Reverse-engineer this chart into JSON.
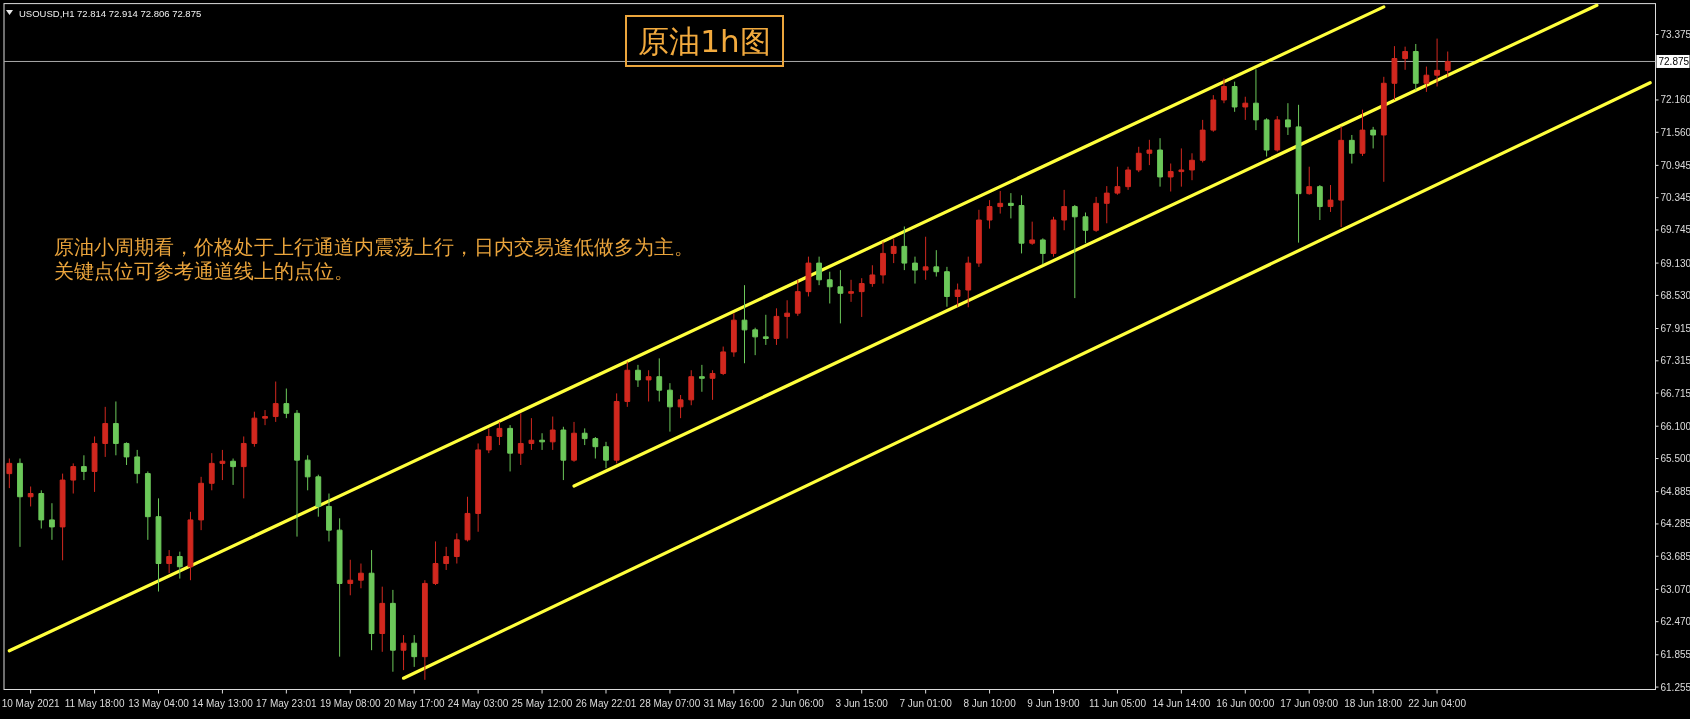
{
  "chart_data": {
    "type": "candlestick",
    "title": "原油1h图",
    "subtitle": "USOUSD,H1  72.814 72.914 72.806 72.875",
    "annotations": [
      "原油小周期看，价格处于上行通道内震荡上行，日内交易逢低做多为主。",
      "关键点位可参考通道线上的点位。"
    ],
    "categories": [
      null,
      null,
      "10 May 2021",
      null,
      null,
      null,
      null,
      null,
      "11 May 18:00",
      null,
      null,
      null,
      null,
      null,
      "13 May 04:00",
      null,
      null,
      null,
      null,
      null,
      "14 May 13:00",
      null,
      null,
      null,
      null,
      null,
      "17 May 23:01",
      null,
      null,
      null,
      null,
      null,
      "19 May 08:00",
      null,
      null,
      null,
      null,
      null,
      "20 May 17:00",
      null,
      null,
      null,
      null,
      null,
      "24 May 03:00",
      null,
      null,
      null,
      null,
      null,
      "25 May 12:00",
      null,
      null,
      null,
      null,
      null,
      "26 May 22:01",
      null,
      null,
      null,
      null,
      null,
      "28 May 07:00",
      null,
      null,
      null,
      null,
      null,
      "31 May 16:00",
      null,
      null,
      null,
      null,
      null,
      "2 Jun 06:00",
      null,
      null,
      null,
      null,
      null,
      "3 Jun 15:00",
      null,
      null,
      null,
      null,
      null,
      "7 Jun 01:00",
      null,
      null,
      null,
      null,
      null,
      "8 Jun 10:00",
      null,
      null,
      null,
      null,
      null,
      "9 Jun 19:00",
      null,
      null,
      null,
      null,
      null,
      "11 Jun 05:00",
      null,
      null,
      null,
      null,
      null,
      "14 Jun 14:00",
      null,
      null,
      null,
      null,
      null,
      "16 Jun 00:00",
      null,
      null,
      null,
      null,
      null,
      "17 Jun 09:00",
      null,
      null,
      null,
      null,
      null,
      "18 Jun 18:00",
      null,
      null,
      null,
      null,
      null,
      "22 Jun 04:00",
      null,
      null,
      null,
      null,
      null,
      null,
      null,
      null,
      null,
      null,
      null,
      null,
      null,
      null,
      null,
      null,
      null,
      null,
      null,
      null
    ],
    "ohlc": [
      [
        65.22,
        65.5,
        64.95,
        65.41
      ],
      [
        65.41,
        65.5,
        63.86,
        64.79
      ],
      [
        64.79,
        64.98,
        64.61,
        64.85
      ],
      [
        64.85,
        64.91,
        64.2,
        64.36
      ],
      [
        64.36,
        64.67,
        63.99,
        64.23
      ],
      [
        64.23,
        65.22,
        63.61,
        65.1
      ],
      [
        65.1,
        65.41,
        64.85,
        65.35
      ],
      [
        65.35,
        65.56,
        65.1,
        65.26
      ],
      [
        65.26,
        65.91,
        64.88,
        65.78
      ],
      [
        65.78,
        66.46,
        65.53,
        66.15
      ],
      [
        66.15,
        66.56,
        65.56,
        65.78
      ],
      [
        65.78,
        65.8,
        65.38,
        65.53
      ],
      [
        65.53,
        65.66,
        65.04,
        65.22
      ],
      [
        65.22,
        65.26,
        63.99,
        64.42
      ],
      [
        64.42,
        64.76,
        63.03,
        63.55
      ],
      [
        63.55,
        63.8,
        63.37,
        63.68
      ],
      [
        63.68,
        63.77,
        63.27,
        63.49
      ],
      [
        63.49,
        64.51,
        63.24,
        64.36
      ],
      [
        64.36,
        65.16,
        64.17,
        65.04
      ],
      [
        65.04,
        65.6,
        64.91,
        65.41
      ],
      [
        65.41,
        65.66,
        65.1,
        65.45
      ],
      [
        65.45,
        65.5,
        65.01,
        65.35
      ],
      [
        65.35,
        65.91,
        64.76,
        65.78
      ],
      [
        65.78,
        66.37,
        65.72,
        66.25
      ],
      [
        66.25,
        66.4,
        66.12,
        66.28
      ],
      [
        66.28,
        66.93,
        66.18,
        66.52
      ],
      [
        66.52,
        66.8,
        66.25,
        66.34
      ],
      [
        66.34,
        66.4,
        64.05,
        65.47
      ],
      [
        65.47,
        65.56,
        64.91,
        65.16
      ],
      [
        65.16,
        65.2,
        64.42,
        64.61
      ],
      [
        64.61,
        64.85,
        63.96,
        64.17
      ],
      [
        64.17,
        64.39,
        61.82,
        63.18
      ],
      [
        63.18,
        63.62,
        62.96,
        63.24
      ],
      [
        63.24,
        63.55,
        63.09,
        63.37
      ],
      [
        63.37,
        63.8,
        61.94,
        62.25
      ],
      [
        62.25,
        63.12,
        61.91,
        62.81
      ],
      [
        62.81,
        63.06,
        61.54,
        61.94
      ],
      [
        61.94,
        62.22,
        61.57,
        62.07
      ],
      [
        62.07,
        62.22,
        61.63,
        61.82
      ],
      [
        61.82,
        63.24,
        61.39,
        63.18
      ],
      [
        63.18,
        63.96,
        63.15,
        63.55
      ],
      [
        63.55,
        63.86,
        63.43,
        63.68
      ],
      [
        63.68,
        64.11,
        63.55,
        63.99
      ],
      [
        63.99,
        64.79,
        63.96,
        64.48
      ],
      [
        64.48,
        65.78,
        64.14,
        65.66
      ],
      [
        65.66,
        66.06,
        65.6,
        65.91
      ],
      [
        65.91,
        66.18,
        65.75,
        66.06
      ],
      [
        66.06,
        66.12,
        65.26,
        65.6
      ],
      [
        65.6,
        66.34,
        65.38,
        65.78
      ],
      [
        65.78,
        66.25,
        65.66,
        65.84
      ],
      [
        65.84,
        65.97,
        65.66,
        65.81
      ],
      [
        65.81,
        66.28,
        65.66,
        66.03
      ],
      [
        66.03,
        66.09,
        65.1,
        65.47
      ],
      [
        65.47,
        66.18,
        65.44,
        65.97
      ],
      [
        65.97,
        66.06,
        65.75,
        65.87
      ],
      [
        65.87,
        65.9,
        65.5,
        65.72
      ],
      [
        65.72,
        65.81,
        65.32,
        65.47
      ],
      [
        65.47,
        66.71,
        65.41,
        66.56
      ],
      [
        66.56,
        67.3,
        66.46,
        67.14
      ],
      [
        67.14,
        67.24,
        66.83,
        66.96
      ],
      [
        66.96,
        67.14,
        66.56,
        67.02
      ],
      [
        67.02,
        67.36,
        66.56,
        66.77
      ],
      [
        66.77,
        66.9,
        66.0,
        66.46
      ],
      [
        66.46,
        66.68,
        66.25,
        66.59
      ],
      [
        66.59,
        67.14,
        66.49,
        67.02
      ],
      [
        67.02,
        67.24,
        66.74,
        66.99
      ],
      [
        66.99,
        67.14,
        66.59,
        67.08
      ],
      [
        67.08,
        67.58,
        67.05,
        67.48
      ],
      [
        67.48,
        68.2,
        67.39,
        68.07
      ],
      [
        68.07,
        68.72,
        67.27,
        67.89
      ],
      [
        67.89,
        67.93,
        67.42,
        67.76
      ],
      [
        67.76,
        68.17,
        67.61,
        67.73
      ],
      [
        67.73,
        68.29,
        67.61,
        68.14
      ],
      [
        68.14,
        68.44,
        67.73,
        68.2
      ],
      [
        68.2,
        68.82,
        68.15,
        68.6
      ],
      [
        68.6,
        69.25,
        68.51,
        69.13
      ],
      [
        69.13,
        69.25,
        68.72,
        68.82
      ],
      [
        68.82,
        68.97,
        68.38,
        68.69
      ],
      [
        68.69,
        69.0,
        68.01,
        68.57
      ],
      [
        68.57,
        68.82,
        68.41,
        68.6
      ],
      [
        68.6,
        68.85,
        68.13,
        68.75
      ],
      [
        68.75,
        69.09,
        68.69,
        68.91
      ],
      [
        68.91,
        69.53,
        68.75,
        69.31
      ],
      [
        69.31,
        69.59,
        69.13,
        69.44
      ],
      [
        69.44,
        69.81,
        69.0,
        69.13
      ],
      [
        69.13,
        69.25,
        68.75,
        69.0
      ],
      [
        69.0,
        69.62,
        68.82,
        69.06
      ],
      [
        69.06,
        69.37,
        68.88,
        68.97
      ],
      [
        68.97,
        69.06,
        68.32,
        68.51
      ],
      [
        68.51,
        68.75,
        68.32,
        68.63
      ],
      [
        68.63,
        69.25,
        68.31,
        69.13
      ],
      [
        69.13,
        70.12,
        69.06,
        69.93
      ],
      [
        69.93,
        70.3,
        69.77,
        70.18
      ],
      [
        70.18,
        70.47,
        70.05,
        70.24
      ],
      [
        70.24,
        70.43,
        69.96,
        70.2
      ],
      [
        70.2,
        70.39,
        69.31,
        69.5
      ],
      [
        69.5,
        69.9,
        69.47,
        69.56
      ],
      [
        69.56,
        69.59,
        69.11,
        69.31
      ],
      [
        69.31,
        69.99,
        69.25,
        69.93
      ],
      [
        69.93,
        70.49,
        69.74,
        70.18
      ],
      [
        70.18,
        70.21,
        68.48,
        69.99
      ],
      [
        69.99,
        70.07,
        69.5,
        69.74
      ],
      [
        69.74,
        70.36,
        69.71,
        70.24
      ],
      [
        70.24,
        70.56,
        69.87,
        70.43
      ],
      [
        70.43,
        70.92,
        70.4,
        70.55
      ],
      [
        70.55,
        70.92,
        70.49,
        70.86
      ],
      [
        70.86,
        71.29,
        70.82,
        71.17
      ],
      [
        71.17,
        71.42,
        70.95,
        71.23
      ],
      [
        71.23,
        71.45,
        70.55,
        70.73
      ],
      [
        70.73,
        70.98,
        70.46,
        70.83
      ],
      [
        70.83,
        71.26,
        70.55,
        70.86
      ],
      [
        70.86,
        71.17,
        70.67,
        71.04
      ],
      [
        71.04,
        71.79,
        71.0,
        71.6
      ],
      [
        71.6,
        72.25,
        71.57,
        72.16
      ],
      [
        72.16,
        72.56,
        72.1,
        72.41
      ],
      [
        72.41,
        72.5,
        71.94,
        72.03
      ],
      [
        72.03,
        72.22,
        71.79,
        72.1
      ],
      [
        72.1,
        72.73,
        71.6,
        71.79
      ],
      [
        71.79,
        71.82,
        71.11,
        71.23
      ],
      [
        71.23,
        71.86,
        71.2,
        71.79
      ],
      [
        71.79,
        72.1,
        71.51,
        71.66
      ],
      [
        71.66,
        72.07,
        69.51,
        70.42
      ],
      [
        70.42,
        70.92,
        70.4,
        70.55
      ],
      [
        70.55,
        70.58,
        69.93,
        70.18
      ],
      [
        70.18,
        70.58,
        70.08,
        70.3
      ],
      [
        70.3,
        71.67,
        69.8,
        71.41
      ],
      [
        71.41,
        71.51,
        70.98,
        71.17
      ],
      [
        71.17,
        71.98,
        71.12,
        71.6
      ],
      [
        71.6,
        71.66,
        71.26,
        71.51
      ],
      [
        71.51,
        72.59,
        70.64,
        72.47
      ],
      [
        72.47,
        73.16,
        72.16,
        72.93
      ],
      [
        72.93,
        73.15,
        72.72,
        73.06
      ],
      [
        73.06,
        73.2,
        72.34,
        72.47
      ],
      [
        72.47,
        72.78,
        72.31,
        72.62
      ],
      [
        72.62,
        73.3,
        72.41,
        72.71
      ],
      [
        72.71,
        73.06,
        72.59,
        72.875
      ],
      null,
      null,
      null,
      null,
      null,
      null,
      null,
      null,
      null,
      null,
      null,
      null,
      null,
      null,
      null,
      null,
      null,
      null,
      null
    ],
    "colors": [
      "#d1281f",
      "#6cc85a",
      "#d1281f",
      "#6cc85a",
      "#6cc85a",
      "#d1281f",
      "#d1281f",
      "#6cc85a",
      "#d1281f",
      "#d1281f",
      "#6cc85a",
      "#6cc85a",
      "#6cc85a",
      "#6cc85a",
      "#6cc85a",
      "#d1281f",
      "#6cc85a",
      "#d1281f",
      "#d1281f",
      "#d1281f",
      "#d1281f",
      "#6cc85a",
      "#d1281f",
      "#d1281f",
      "#d1281f",
      "#d1281f",
      "#6cc85a",
      "#6cc85a",
      "#6cc85a",
      "#6cc85a",
      "#6cc85a",
      "#6cc85a",
      "#d1281f",
      "#d1281f",
      "#6cc85a",
      "#d1281f",
      "#6cc85a",
      "#d1281f",
      "#6cc85a",
      "#d1281f",
      "#d1281f",
      "#d1281f",
      "#d1281f",
      "#d1281f",
      "#d1281f",
      "#d1281f",
      "#d1281f",
      "#6cc85a",
      "#d1281f",
      "#d1281f",
      "#6cc85a",
      "#d1281f",
      "#6cc85a",
      "#d1281f",
      "#6cc85a",
      "#6cc85a",
      "#6cc85a",
      "#d1281f",
      "#d1281f",
      "#6cc85a",
      "#d1281f",
      "#6cc85a",
      "#6cc85a",
      "#d1281f",
      "#d1281f",
      "#6cc85a",
      "#d1281f",
      "#d1281f",
      "#d1281f",
      "#6cc85a",
      "#6cc85a",
      "#6cc85a",
      "#d1281f",
      "#d1281f",
      "#d1281f",
      "#d1281f",
      "#6cc85a",
      "#6cc85a",
      "#6cc85a",
      "#d1281f",
      "#d1281f",
      "#d1281f",
      "#d1281f",
      "#d1281f",
      "#6cc85a",
      "#6cc85a",
      "#d1281f",
      "#6cc85a",
      "#6cc85a",
      "#d1281f",
      "#d1281f",
      "#d1281f",
      "#d1281f",
      "#d1281f",
      "#6cc85a",
      "#6cc85a",
      "#d1281f",
      "#6cc85a",
      "#d1281f",
      "#d1281f",
      "#6cc85a",
      "#6cc85a",
      "#d1281f",
      "#d1281f",
      "#d1281f",
      "#d1281f",
      "#d1281f",
      "#d1281f",
      "#6cc85a",
      "#d1281f",
      "#d1281f",
      "#d1281f",
      "#d1281f",
      "#d1281f",
      "#d1281f",
      "#6cc85a",
      "#d1281f",
      "#6cc85a",
      "#6cc85a",
      "#d1281f",
      "#6cc85a",
      "#6cc85a",
      "#d1281f",
      "#6cc85a",
      "#d1281f",
      "#d1281f",
      "#6cc85a",
      "#d1281f",
      "#6cc85a",
      "#d1281f",
      "#d1281f",
      "#d1281f",
      "#6cc85a",
      "#d1281f",
      "#d1281f",
      "#d1281f",
      null,
      null,
      null,
      null,
      null,
      null,
      null,
      null,
      null,
      null,
      null,
      null,
      null,
      null,
      null,
      null,
      null,
      null,
      null
    ],
    "series": [
      {
        "type": "line",
        "color": "#ffff3c",
        "values": [
          61.93,
          null,
          null,
          null,
          null,
          null,
          null,
          null,
          null,
          null,
          null,
          null,
          null,
          null,
          null,
          null,
          null,
          null,
          null,
          null,
          null,
          null,
          null,
          null,
          null,
          null,
          null,
          null,
          null,
          null,
          null,
          null,
          null,
          null,
          null,
          null,
          null,
          null,
          null,
          null,
          null,
          null,
          null,
          null,
          null,
          null,
          null,
          null,
          null,
          null,
          null,
          null,
          null,
          null,
          null,
          null,
          null,
          null,
          null,
          null,
          null,
          null,
          null,
          null,
          null,
          null,
          null,
          null,
          null,
          null,
          null,
          null,
          null,
          null,
          null,
          null,
          null,
          null,
          null,
          null,
          null,
          null,
          null,
          null,
          null,
          null,
          null,
          null,
          null,
          null,
          null,
          null,
          null,
          null,
          null,
          null,
          null,
          null,
          null,
          null,
          null,
          null,
          null,
          null,
          null,
          null,
          null,
          null,
          null,
          null,
          null,
          null,
          null,
          null,
          null,
          null,
          null,
          null,
          null,
          null,
          null,
          null,
          null,
          null,
          null,
          null,
          null,
          null,
          null,
          73.89,
          null,
          null,
          null,
          null,
          null,
          null,
          null,
          null,
          null,
          null,
          null,
          null,
          null,
          null,
          null,
          null,
          null,
          null,
          null,
          null,
          null,
          null,
          null,
          null,
          null
        ]
      },
      {
        "type": "line",
        "color": "#ffff3c",
        "values": [
          null,
          null,
          null,
          null,
          null,
          null,
          null,
          null,
          null,
          null,
          null,
          null,
          null,
          null,
          null,
          null,
          null,
          null,
          null,
          null,
          null,
          null,
          null,
          null,
          null,
          null,
          null,
          null,
          null,
          null,
          null,
          null,
          null,
          null,
          null,
          null,
          null,
          null,
          null,
          null,
          null,
          null,
          null,
          null,
          null,
          null,
          null,
          null,
          null,
          null,
          null,
          null,
          null,
          64.99,
          null,
          null,
          null,
          null,
          null,
          null,
          null,
          null,
          null,
          null,
          null,
          null,
          null,
          null,
          null,
          null,
          null,
          null,
          null,
          null,
          null,
          null,
          null,
          null,
          null,
          null,
          null,
          null,
          null,
          null,
          null,
          null,
          null,
          null,
          null,
          null,
          null,
          null,
          null,
          null,
          null,
          null,
          null,
          null,
          null,
          null,
          null,
          null,
          null,
          null,
          null,
          null,
          null,
          null,
          null,
          null,
          null,
          null,
          null,
          null,
          null,
          null,
          null,
          null,
          null,
          null,
          null,
          null,
          null,
          null,
          null,
          null,
          null,
          null,
          null,
          null,
          null,
          null,
          null,
          null,
          null,
          null,
          null,
          null,
          null,
          null,
          null,
          null,
          null,
          null,
          null,
          null,
          null,
          null,
          null,
          73.92,
          null,
          null,
          null,
          null,
          null
        ]
      },
      {
        "type": "line",
        "color": "#ffff3c",
        "values": [
          null,
          null,
          null,
          null,
          null,
          null,
          null,
          null,
          null,
          null,
          null,
          null,
          null,
          null,
          null,
          null,
          null,
          null,
          null,
          null,
          null,
          null,
          null,
          null,
          null,
          null,
          null,
          null,
          null,
          null,
          null,
          null,
          null,
          null,
          null,
          null,
          null,
          61.42,
          null,
          null,
          null,
          null,
          null,
          null,
          null,
          null,
          null,
          null,
          null,
          null,
          null,
          null,
          null,
          null,
          null,
          null,
          null,
          null,
          null,
          null,
          null,
          null,
          null,
          null,
          null,
          null,
          null,
          null,
          null,
          null,
          null,
          null,
          null,
          null,
          null,
          null,
          null,
          null,
          null,
          null,
          null,
          null,
          null,
          null,
          null,
          null,
          null,
          null,
          null,
          null,
          null,
          null,
          null,
          null,
          null,
          null,
          null,
          null,
          null,
          null,
          null,
          null,
          null,
          null,
          null,
          null,
          null,
          null,
          null,
          null,
          null,
          null,
          null,
          null,
          null,
          null,
          null,
          null,
          null,
          null,
          null,
          null,
          null,
          null,
          null,
          null,
          null,
          null,
          null,
          null,
          null,
          null,
          null,
          null,
          null,
          null,
          null,
          null,
          null,
          null,
          null,
          null,
          null,
          null,
          null,
          null,
          null,
          null,
          null,
          null,
          null,
          null,
          null,
          null,
          72.48
        ]
      }
    ],
    "ref_lines": [
      {
        "axis": "y",
        "value": 72.875,
        "label": "72.875",
        "color": "#a8a8a8"
      }
    ],
    "ylim": [
      61.21,
      73.95
    ],
    "yticks": [
      73.375,
      {
        "value": 72.16,
        "label": "72.160"
      },
      {
        "value": 71.56,
        "label": "71.560"
      },
      70.945,
      70.345,
      69.745,
      {
        "value": 69.13,
        "label": "69.130"
      },
      {
        "value": 68.53,
        "label": "68.530"
      },
      67.915,
      67.315,
      66.715,
      {
        "value": 66.1,
        "label": "66.100"
      },
      {
        "value": 65.5,
        "label": "65.500"
      },
      64.885,
      64.285,
      63.685,
      {
        "value": 63.07,
        "label": "63.070"
      },
      {
        "value": 62.47,
        "label": "62.470"
      },
      61.855,
      61.255
    ]
  }
}
